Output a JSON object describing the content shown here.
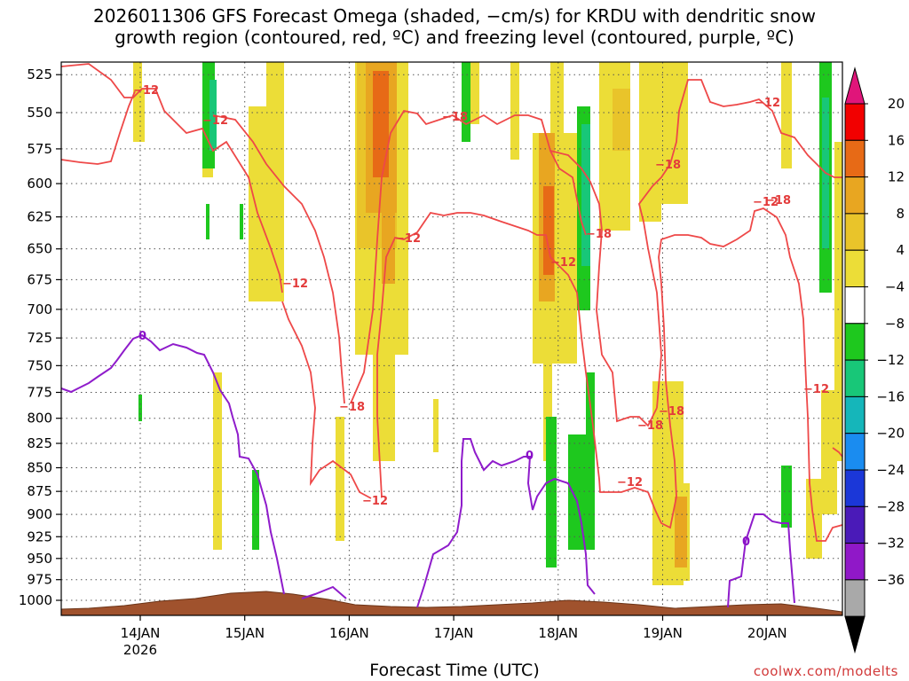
{
  "title_line1": "2026011306 GFS Forecast Omega (shaded, −cm/s) for KRDU with dendritic snow",
  "title_line2": "growth region (contoured, red, ºC) and freezing level (contoured, purple, ºC)",
  "xlabel": "Forecast Time (UTC)",
  "credit": "coolwx.com/modelts",
  "chart_data": {
    "type": "heatmap",
    "y_axis": {
      "label": "",
      "ticks": [
        "525",
        "550",
        "575",
        "600",
        "625",
        "650",
        "675",
        "700",
        "725",
        "750",
        "775",
        "800",
        "825",
        "850",
        "875",
        "900",
        "925",
        "950",
        "975",
        "1000"
      ],
      "range_hpa": [
        510,
        1010
      ]
    },
    "x_axis": {
      "ticks": [
        "14JAN",
        "15JAN",
        "16JAN",
        "17JAN",
        "18JAN",
        "19JAN",
        "20JAN"
      ],
      "sub_label": "2026",
      "range_hours_from_13JAN_06Z": [
        0,
        186
      ]
    },
    "colorbar": {
      "labels": [
        "20",
        "16",
        "12",
        "8",
        "4",
        "−4",
        "−8",
        "−12",
        "−16",
        "−20",
        "−24",
        "−28",
        "−32",
        "−36"
      ],
      "colors": [
        "#f20000",
        "#e76a16",
        "#e8a621",
        "#e9c42a",
        "#ecdd37",
        "#ffffff",
        "#1ec81e",
        "#18c778",
        "#15b6ba",
        "#1a8cf0",
        "#1b37d8",
        "#4a1ab8",
        "#9018c8",
        "#a9a9a9"
      ],
      "top_arrow_color": "#e0157a",
      "bottom_arrow_color": "#000000"
    },
    "contour_labels": {
      "dgz": [
        "−12",
        "−12",
        "−12",
        "−12",
        "−12",
        "−12",
        "−12",
        "−12",
        "−12",
        "−12",
        "−18",
        "−18",
        "−18",
        "−18",
        "−18",
        "−18",
        "−18"
      ],
      "freezing": [
        "0",
        "0",
        "0"
      ]
    },
    "grid": true,
    "terrain_color": "#a0522d"
  }
}
